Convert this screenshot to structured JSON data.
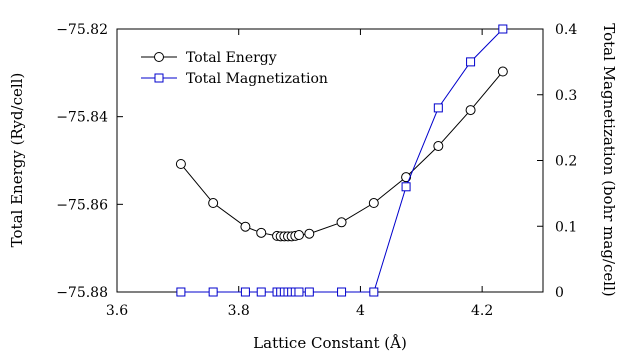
{
  "chart_data": {
    "type": "line",
    "xlabel": "Lattice Constant (Å)",
    "ylabel_left": "Total Energy (Ryd/cell)",
    "ylabel_right": "Total Magnetization (bohr mag/cell)",
    "xlim": [
      3.6,
      4.3
    ],
    "ylim_left": [
      -75.88,
      -75.82
    ],
    "ylim_right": [
      0,
      0.4
    ],
    "x_ticks": [
      3.6,
      3.8,
      4.0,
      4.2
    ],
    "x_tick_labels": [
      "3.6",
      "3.8",
      "4",
      "4.2"
    ],
    "y_left_ticks": [
      -75.88,
      -75.86,
      -75.84,
      -75.82
    ],
    "y_left_tick_labels": [
      "−75.88",
      "−75.86",
      "−75.84",
      "−75.82"
    ],
    "y_right_ticks": [
      0,
      0.1,
      0.2,
      0.3,
      0.4
    ],
    "y_right_tick_labels": [
      "0",
      "0.1",
      "0.2",
      "0.3",
      "0.4"
    ],
    "legend_position": "top-left",
    "grid": false,
    "series": [
      {
        "name": "Total Energy",
        "axis": "left",
        "marker": "circle",
        "color": "#000000",
        "x": [
          3.705,
          3.758,
          3.811,
          3.837,
          3.863,
          3.869,
          3.875,
          3.881,
          3.887,
          3.893,
          3.899,
          3.916,
          3.969,
          4.022,
          4.075,
          4.128,
          4.181,
          4.234
        ],
        "y": [
          -75.8508,
          -75.8597,
          -75.8651,
          -75.8665,
          -75.8672,
          -75.8673,
          -75.8673,
          -75.8673,
          -75.8673,
          -75.8672,
          -75.867,
          -75.8667,
          -75.8641,
          -75.8597,
          -75.8538,
          -75.8467,
          -75.8385,
          -75.8297
        ]
      },
      {
        "name": "Total Magnetization",
        "axis": "right",
        "marker": "square",
        "color": "#0000cc",
        "x": [
          3.705,
          3.758,
          3.811,
          3.837,
          3.863,
          3.869,
          3.875,
          3.881,
          3.887,
          3.893,
          3.899,
          3.916,
          3.969,
          4.022,
          4.075,
          4.128,
          4.181,
          4.234
        ],
        "y": [
          0,
          0,
          0,
          0,
          0,
          0,
          0,
          0,
          0,
          0,
          0,
          0,
          0,
          0,
          0.16,
          0.28,
          0.35,
          0.4
        ]
      }
    ]
  }
}
